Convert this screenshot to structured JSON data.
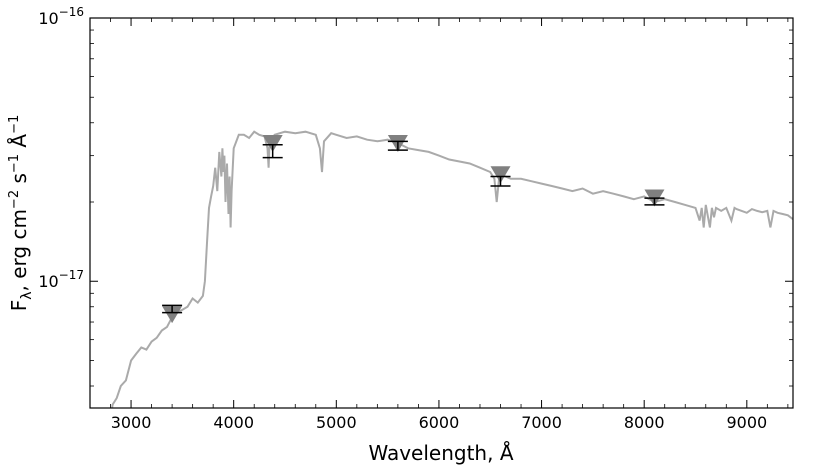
{
  "chart_data": {
    "type": "line",
    "xlabel": "Wavelength, Å",
    "ylabel": "F_λ, erg cm⁻² s⁻¹ Å⁻¹",
    "xlim": [
      2600,
      9450
    ],
    "ylim": [
      3.3e-18,
      1e-16
    ],
    "yscale": "log",
    "grid": false,
    "x_ticks": [
      {
        "value": 3000,
        "label": "3000"
      },
      {
        "value": 4000,
        "label": "4000"
      },
      {
        "value": 5000,
        "label": "5000"
      },
      {
        "value": 6000,
        "label": "6000"
      },
      {
        "value": 7000,
        "label": "7000"
      },
      {
        "value": 8000,
        "label": "8000"
      },
      {
        "value": 9000,
        "label": "9000"
      }
    ],
    "y_ticks": [
      {
        "value": 1e-17,
        "base": "10",
        "exp": "−17"
      },
      {
        "value": 1e-16,
        "base": "10",
        "exp": "−16"
      }
    ],
    "colors": {
      "spectrum": "#aaaaaa",
      "model_marker": "#808080",
      "observed": "#000000"
    },
    "spectrum": {
      "x": [
        2600,
        2780,
        2800,
        2820,
        2860,
        2900,
        2950,
        3000,
        3050,
        3100,
        3150,
        3200,
        3250,
        3300,
        3350,
        3400,
        3450,
        3500,
        3550,
        3600,
        3650,
        3700,
        3720,
        3740,
        3760,
        3780,
        3800,
        3820,
        3840,
        3860,
        3880,
        3890,
        3900,
        3910,
        3920,
        3935,
        3950,
        3960,
        3970,
        3980,
        4000,
        4050,
        4100,
        4150,
        4200,
        4250,
        4300,
        4330,
        4340,
        4350,
        4400,
        4500,
        4600,
        4700,
        4800,
        4840,
        4861,
        4880,
        4950,
        5000,
        5100,
        5200,
        5300,
        5400,
        5500,
        5600,
        5700,
        5800,
        5900,
        6000,
        6100,
        6200,
        6300,
        6400,
        6500,
        6540,
        6563,
        6590,
        6650,
        6700,
        6800,
        6900,
        7000,
        7100,
        7200,
        7300,
        7400,
        7500,
        7600,
        7700,
        7800,
        7900,
        8000,
        8100,
        8200,
        8300,
        8400,
        8500,
        8540,
        8560,
        8580,
        8600,
        8640,
        8660,
        8680,
        8700,
        8750,
        8800,
        8850,
        8880,
        8900,
        8950,
        9000,
        9050,
        9100,
        9150,
        9200,
        9230,
        9260,
        9300,
        9350,
        9400,
        9450
      ],
      "y": [
        2.8e-18,
        2.8e-18,
        3e-18,
        3.4e-18,
        3.6e-18,
        4e-18,
        4.2e-18,
        5e-18,
        5.3e-18,
        5.6e-18,
        5.5e-18,
        5.9e-18,
        6.1e-18,
        6.5e-18,
        6.7e-18,
        7.3e-18,
        7.6e-18,
        7.8e-18,
        8e-18,
        8.6e-18,
        8.3e-18,
        8.8e-18,
        1e-17,
        1.4e-17,
        1.9e-17,
        2.1e-17,
        2.3e-17,
        2.7e-17,
        2.2e-17,
        3.1e-17,
        2.5e-17,
        3.2e-17,
        2.6e-17,
        3e-17,
        2e-17,
        2.8e-17,
        1.8e-17,
        2.5e-17,
        1.6e-17,
        2.2e-17,
        3.2e-17,
        3.6e-17,
        3.6e-17,
        3.5e-17,
        3.7e-17,
        3.6e-17,
        3.55e-17,
        3.2e-17,
        2.7e-17,
        3.4e-17,
        3.6e-17,
        3.7e-17,
        3.65e-17,
        3.7e-17,
        3.6e-17,
        3.2e-17,
        2.6e-17,
        3.4e-17,
        3.65e-17,
        3.6e-17,
        3.5e-17,
        3.55e-17,
        3.45e-17,
        3.4e-17,
        3.45e-17,
        3.35e-17,
        3.2e-17,
        3.15e-17,
        3.1e-17,
        3e-17,
        2.9e-17,
        2.85e-17,
        2.8e-17,
        2.7e-17,
        2.6e-17,
        2.45e-17,
        2e-17,
        2.55e-17,
        2.5e-17,
        2.45e-17,
        2.45e-17,
        2.4e-17,
        2.35e-17,
        2.3e-17,
        2.25e-17,
        2.2e-17,
        2.25e-17,
        2.15e-17,
        2.2e-17,
        2.15e-17,
        2.1e-17,
        2.05e-17,
        2.1e-17,
        2e-17,
        2.05e-17,
        2e-17,
        1.95e-17,
        1.9e-17,
        1.7e-17,
        1.9e-17,
        1.6e-17,
        1.95e-17,
        1.6e-17,
        1.9e-17,
        1.75e-17,
        1.9e-17,
        1.85e-17,
        1.9e-17,
        1.7e-17,
        1.9e-17,
        1.88e-17,
        1.85e-17,
        1.82e-17,
        1.88e-17,
        1.85e-17,
        1.83e-17,
        1.85e-17,
        1.6e-17,
        1.85e-17,
        1.82e-17,
        1.8e-17,
        1.78e-17,
        1.72e-17
      ]
    },
    "model_points": [
      {
        "x": 3400,
        "y": 7.5e-18
      },
      {
        "x": 4380,
        "y": 3.35e-17
      },
      {
        "x": 5600,
        "y": 3.35e-17
      },
      {
        "x": 6600,
        "y": 2.55e-17
      },
      {
        "x": 8100,
        "y": 2.08e-17
      }
    ],
    "observed_points": [
      {
        "x": 3400,
        "y": 7.8e-18,
        "lo": 7.6e-18,
        "hi": 8.1e-18
      },
      {
        "x": 4380,
        "y": 3.1e-17,
        "lo": 2.95e-17,
        "hi": 3.3e-17
      },
      {
        "x": 5600,
        "y": 3.25e-17,
        "lo": 3.15e-17,
        "hi": 3.4e-17
      },
      {
        "x": 6600,
        "y": 2.4e-17,
        "lo": 2.3e-17,
        "hi": 2.5e-17
      },
      {
        "x": 8100,
        "y": 2e-17,
        "lo": 1.95e-17,
        "hi": 2.07e-17
      }
    ]
  }
}
